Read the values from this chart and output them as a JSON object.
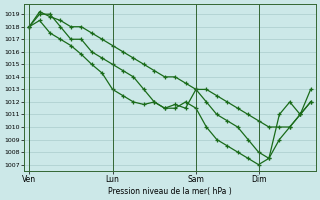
{
  "background_color": "#cce8e8",
  "grid_color": "#aacccc",
  "line_color": "#1a6b1a",
  "xlabel": "Pression niveau de la mer( hPa )",
  "ylim": [
    1006.5,
    1019.8
  ],
  "xtick_labels": [
    "Ven",
    "Lun",
    "Sam",
    "Dim"
  ],
  "xtick_positions": [
    0,
    8,
    16,
    22
  ],
  "xlim": [
    -0.5,
    27.5
  ],
  "s1_x": [
    0,
    1,
    2,
    3,
    4,
    5,
    6,
    7,
    8,
    9,
    10,
    11,
    12,
    13,
    14,
    15,
    16,
    17,
    18,
    19,
    20,
    21,
    22,
    23,
    24,
    25,
    26,
    27
  ],
  "s1_y": [
    1018,
    1019,
    1019,
    1018,
    1017,
    1017,
    1016,
    1015.5,
    1015,
    1014.5,
    1014,
    1013,
    1012,
    1011.5,
    1011.5,
    1012,
    1011.5,
    1010,
    1009,
    1008.5,
    1008,
    1007.5,
    1007,
    1007.5,
    1011,
    1012,
    1011,
    1012
  ],
  "s2_x": [
    0,
    1,
    2,
    3,
    4,
    5,
    6,
    7,
    8,
    9,
    10,
    11,
    12,
    13,
    14,
    15,
    16,
    17,
    18,
    19,
    20,
    21,
    22,
    23,
    24,
    25,
    26,
    27
  ],
  "s2_y": [
    1018,
    1018.5,
    1017.5,
    1017,
    1016.5,
    1015.8,
    1015,
    1014.3,
    1013,
    1012.5,
    1012,
    1011.8,
    1012,
    1011.5,
    1011.8,
    1011.5,
    1013,
    1012,
    1011,
    1010.5,
    1010,
    1009,
    1008,
    1007.5,
    1009,
    1010,
    1011,
    1012
  ],
  "s3_x": [
    0,
    1,
    2,
    3,
    4,
    5,
    6,
    7,
    8,
    9,
    10,
    11,
    12,
    13,
    14,
    15,
    16,
    17,
    18,
    19,
    20,
    21,
    22,
    23,
    24,
    25,
    26,
    27
  ],
  "s3_y": [
    1018,
    1019.2,
    1018.8,
    1018.5,
    1018,
    1018,
    1017.5,
    1017,
    1016.5,
    1016,
    1015.5,
    1015,
    1014.5,
    1014,
    1014,
    1013.5,
    1013,
    1013,
    1012.5,
    1012,
    1011.5,
    1011,
    1010.5,
    1010,
    1010,
    1010,
    1011,
    1013
  ]
}
